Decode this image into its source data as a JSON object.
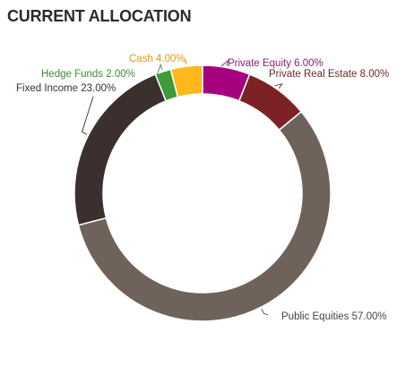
{
  "chart_data": {
    "type": "pie",
    "title": "CURRENT ALLOCATION",
    "donut": true,
    "start_category": "Private Equity",
    "direction": "clockwise",
    "slices": [
      {
        "category": "Private Equity",
        "value": 6.0,
        "label": "Private Equity 6.00%",
        "color": "#a6007f",
        "label_color": "#8a1d78"
      },
      {
        "category": "Private Real Estate",
        "value": 8.0,
        "label": "Private Real Estate 8.00%",
        "color": "#7c2225",
        "label_color": "#6e2a2c"
      },
      {
        "category": "Public Equities",
        "value": 57.0,
        "label": "Public Equities 57.00%",
        "color": "#6e625a",
        "label_color": "#4a423d"
      },
      {
        "category": "Fixed Income",
        "value": 23.0,
        "label": "Fixed Income 23.00%",
        "color": "#3b302d",
        "label_color": "#3b302d"
      },
      {
        "category": "Hedge Funds",
        "value": 2.0,
        "label": "Hedge Funds 2.00%",
        "color": "#3f9a3a",
        "label_color": "#3f8a3a"
      },
      {
        "category": "Cash",
        "value": 4.0,
        "label": "Cash 4.00%",
        "color": "#ffb81c",
        "label_color": "#e59a10"
      }
    ]
  }
}
